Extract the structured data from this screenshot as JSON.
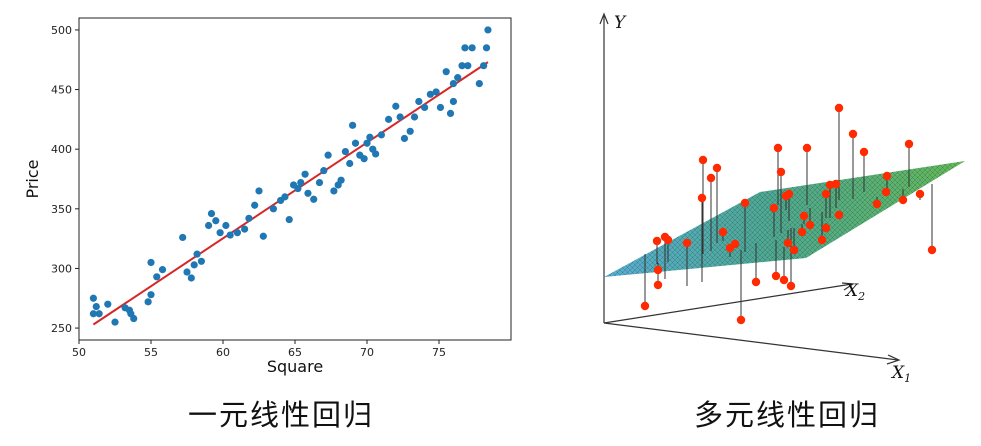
{
  "chart_data": [
    {
      "type": "scatter",
      "title": "",
      "xlabel": "Square",
      "ylabel": "Price",
      "xlim": [
        50,
        80
      ],
      "ylim": [
        240,
        510
      ],
      "xticks": [
        50,
        55,
        60,
        65,
        70,
        75
      ],
      "yticks": [
        250,
        300,
        350,
        400,
        450,
        500
      ],
      "grid": false,
      "point_color": "#1f77b4",
      "line_color": "#d62728",
      "points": [
        [
          51.0,
          275
        ],
        [
          51.0,
          262
        ],
        [
          51.2,
          268
        ],
        [
          51.4,
          262
        ],
        [
          52.0,
          270
        ],
        [
          52.5,
          255
        ],
        [
          53.2,
          267
        ],
        [
          53.5,
          265
        ],
        [
          53.6,
          262
        ],
        [
          53.8,
          258
        ],
        [
          54.8,
          272
        ],
        [
          55.0,
          278
        ],
        [
          55.0,
          305
        ],
        [
          55.4,
          293
        ],
        [
          55.8,
          299
        ],
        [
          57.2,
          326
        ],
        [
          57.5,
          297
        ],
        [
          57.8,
          292
        ],
        [
          58.0,
          303
        ],
        [
          58.2,
          312
        ],
        [
          58.5,
          306
        ],
        [
          59.0,
          336
        ],
        [
          59.2,
          346
        ],
        [
          59.5,
          340
        ],
        [
          59.8,
          330
        ],
        [
          60.2,
          336
        ],
        [
          60.5,
          328
        ],
        [
          61.0,
          330
        ],
        [
          61.5,
          333
        ],
        [
          61.8,
          342
        ],
        [
          62.2,
          353
        ],
        [
          62.5,
          365
        ],
        [
          62.8,
          327
        ],
        [
          63.5,
          350
        ],
        [
          64.0,
          357
        ],
        [
          64.3,
          360
        ],
        [
          64.6,
          341
        ],
        [
          64.9,
          370
        ],
        [
          65.2,
          367
        ],
        [
          65.4,
          372
        ],
        [
          65.7,
          379
        ],
        [
          65.9,
          363
        ],
        [
          66.3,
          358
        ],
        [
          66.7,
          372
        ],
        [
          67.0,
          382
        ],
        [
          67.3,
          395
        ],
        [
          67.7,
          365
        ],
        [
          68.0,
          370
        ],
        [
          68.2,
          374
        ],
        [
          68.5,
          398
        ],
        [
          68.8,
          388
        ],
        [
          69.0,
          420
        ],
        [
          69.2,
          405
        ],
        [
          69.5,
          395
        ],
        [
          69.8,
          392
        ],
        [
          70.0,
          405
        ],
        [
          70.2,
          410
        ],
        [
          70.4,
          400
        ],
        [
          70.6,
          396
        ],
        [
          71.0,
          412
        ],
        [
          71.5,
          425
        ],
        [
          72.0,
          436
        ],
        [
          72.3,
          427
        ],
        [
          72.6,
          409
        ],
        [
          73.0,
          415
        ],
        [
          73.3,
          427
        ],
        [
          73.6,
          440
        ],
        [
          74.0,
          435
        ],
        [
          74.4,
          446
        ],
        [
          74.8,
          448
        ],
        [
          75.1,
          435
        ],
        [
          75.5,
          465
        ],
        [
          75.8,
          430
        ],
        [
          76.0,
          455
        ],
        [
          76.3,
          460
        ],
        [
          76.6,
          470
        ],
        [
          76.8,
          485
        ],
        [
          77.0,
          470
        ],
        [
          77.3,
          485
        ],
        [
          77.8,
          455
        ],
        [
          78.1,
          470
        ],
        [
          78.3,
          485
        ],
        [
          78.4,
          500
        ],
        [
          76.0,
          440
        ]
      ],
      "fit_line": {
        "x": [
          51,
          78.4
        ],
        "y": [
          253,
          473
        ]
      }
    },
    {
      "type": "scatter",
      "title": "",
      "axes_labels": {
        "y": "Y",
        "x1": "X",
        "x1_sub": "1",
        "x2": "X",
        "x2_sub": "2"
      },
      "plane_color": "#3d9a6a",
      "point_color": "#ff2a00",
      "residual_color": "#333333",
      "points": [
        [
          85,
          306,
          254
        ],
        [
          97,
          241,
          264
        ],
        [
          105,
          237,
          279
        ],
        [
          108,
          240,
          262
        ],
        [
          98,
          270,
          275
        ],
        [
          98,
          285,
          263
        ],
        [
          142,
          198,
          282
        ],
        [
          127,
          243,
          286
        ],
        [
          143,
          160,
          254
        ],
        [
          151,
          178,
          251
        ],
        [
          157,
          168,
          243
        ],
        [
          163,
          232,
          241
        ],
        [
          170,
          248,
          257
        ],
        [
          175,
          244,
          240
        ],
        [
          181,
          320,
          250
        ],
        [
          185,
          203,
          252
        ],
        [
          196,
          282,
          243
        ],
        [
          221,
          172,
          233
        ],
        [
          214,
          208,
          237
        ],
        [
          226,
          196,
          210
        ],
        [
          224,
          280,
          247
        ],
        [
          229,
          194,
          221
        ],
        [
          216,
          276,
          240
        ],
        [
          228,
          243,
          230
        ],
        [
          231,
          286,
          228
        ],
        [
          234,
          250,
          228
        ],
        [
          242,
          232,
          224
        ],
        [
          250,
          225,
          208
        ],
        [
          262,
          240,
          212
        ],
        [
          266,
          194,
          218
        ],
        [
          270,
          185,
          218
        ],
        [
          279,
          215,
          216
        ],
        [
          276,
          184,
          208
        ],
        [
          293,
          134,
          199
        ],
        [
          279,
          108,
          200
        ],
        [
          304,
          152,
          192
        ],
        [
          317,
          204,
          197
        ],
        [
          343,
          200,
          189
        ],
        [
          349,
          144,
          187
        ],
        [
          360,
          194,
          200
        ],
        [
          326,
          192,
          195
        ],
        [
          327,
          176,
          193
        ],
        [
          247,
          148,
          205
        ],
        [
          218,
          148,
          205
        ],
        [
          372,
          250,
          184
        ],
        [
          244,
          216,
          224
        ],
        [
          266,
          228,
          223
        ]
      ]
    }
  ],
  "captions": {
    "left": "一元线性回归",
    "right": "多元线性回归"
  }
}
